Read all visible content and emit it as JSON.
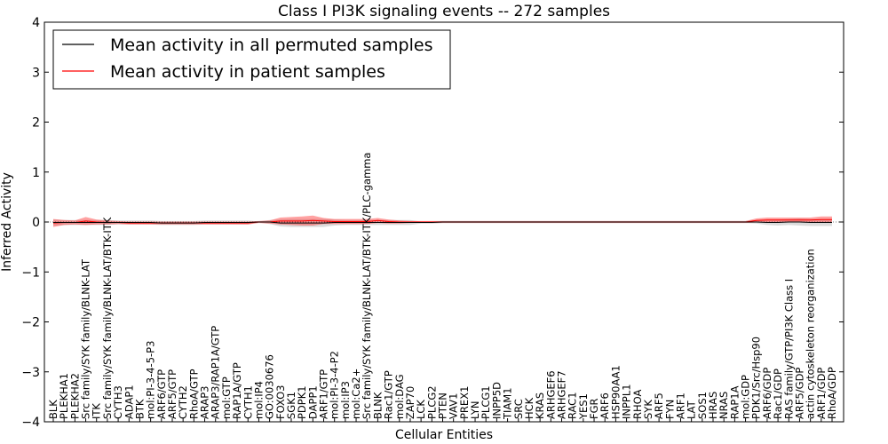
{
  "chart_data": {
    "type": "line",
    "title": "Class I PI3K signaling events -- 272 samples",
    "xlabel": "Cellular Entities",
    "ylabel": "Inferred Activity",
    "ylim": [
      -4,
      4
    ],
    "yticks": [
      -4,
      -3,
      -2,
      -1,
      0,
      1,
      2,
      3,
      4
    ],
    "ytick_labels": [
      "−4",
      "−3",
      "−2",
      "−1",
      "0",
      "1",
      "2",
      "3",
      "4"
    ],
    "legend_position": "top-left",
    "categories": [
      "BLK",
      "PLEKHA1",
      "PLEKHA2",
      "Src family/SYK family/BLNK-LAT",
      "ITK",
      "Src family/SYK family/BLNK-LAT/BTK-ITK",
      "CYTH3",
      "ADAP1",
      "BTK",
      "mol:PI-3-4-5-P3",
      "ARF6/GTP",
      "ARF5/GTP",
      "CYTH2",
      "RhoA/GTP",
      "ARAP3",
      "ARAP3/RAP1A/GTP",
      "mol:GTP",
      "RAP1A/GTP",
      "CYTH1",
      "mol:IP4",
      "GO:0030676",
      "FOXO3",
      "SGK1",
      "PDPK1",
      "DAPP1",
      "ARF1/GTP",
      "mol:PI-3-4-P2",
      "mol:IP3",
      "mol:Ca2+",
      "Src family/SYK family/BLNK-LAT/BTK-ITK/PLC-gamma",
      "BLNK",
      "Rac1/GTP",
      "mol:DAG",
      "ZAP70",
      "LCK",
      "PLCG2",
      "PTEN",
      "VAV1",
      "PREX1",
      "LYN",
      "PLCG1",
      "INPP5D",
      "TIAM1",
      "SRC",
      "HCK",
      "KRAS",
      "ARHGEF6",
      "ARHGEF7",
      "RAC1",
      "YES1",
      "FGR",
      "ARF6",
      "HSP90AA1",
      "INPPL1",
      "RHOA",
      "SYK",
      "ARF5",
      "FYN",
      "ARF1",
      "LAT",
      "SOS1",
      "HRAS",
      "NRAS",
      "RAP1A",
      "mol:GDP",
      "PDK1/Src/Hsp90",
      "ARF6/GDP",
      "Rac1/GDP",
      "RAS family/GTP/PI3K Class I",
      "ARF5/GDP",
      "actin cytoskeleton reorganization",
      "ARF1/GDP",
      "RhoA/GDP"
    ],
    "series": [
      {
        "name": "Mean activity in all permuted samples",
        "color": "#000000",
        "values": [
          -0.01,
          -0.01,
          -0.01,
          -0.01,
          -0.01,
          -0.01,
          -0.01,
          -0.01,
          -0.01,
          -0.01,
          -0.02,
          -0.02,
          -0.02,
          -0.02,
          -0.01,
          -0.01,
          -0.01,
          -0.01,
          -0.01,
          0.0,
          0.0,
          -0.02,
          -0.02,
          -0.02,
          -0.02,
          -0.02,
          -0.01,
          -0.01,
          -0.01,
          -0.01,
          -0.01,
          -0.01,
          -0.01,
          -0.01,
          -0.01,
          -0.01,
          0.0,
          0.0,
          0.0,
          0.0,
          0.0,
          0.0,
          0.0,
          0.0,
          0.0,
          0.0,
          0.0,
          0.0,
          0.0,
          0.0,
          0.0,
          0.0,
          0.0,
          0.0,
          0.0,
          0.0,
          0.0,
          0.0,
          0.0,
          0.0,
          0.0,
          0.0,
          0.0,
          0.0,
          0.0,
          0.0,
          -0.01,
          -0.01,
          0.0,
          0.0,
          -0.01,
          -0.01,
          -0.01
        ],
        "band": [
          0.06,
          0.05,
          0.05,
          0.05,
          0.05,
          0.05,
          0.04,
          0.04,
          0.04,
          0.04,
          0.04,
          0.04,
          0.04,
          0.04,
          0.04,
          0.04,
          0.04,
          0.04,
          0.04,
          0.01,
          0.04,
          0.07,
          0.08,
          0.08,
          0.08,
          0.08,
          0.06,
          0.05,
          0.05,
          0.05,
          0.05,
          0.05,
          0.05,
          0.05,
          0.02,
          0.02,
          0.02,
          0.02,
          0.02,
          0.02,
          0.02,
          0.02,
          0.02,
          0.02,
          0.02,
          0.02,
          0.02,
          0.02,
          0.02,
          0.02,
          0.02,
          0.02,
          0.02,
          0.02,
          0.02,
          0.02,
          0.02,
          0.02,
          0.02,
          0.02,
          0.02,
          0.02,
          0.02,
          0.02,
          0.02,
          0.03,
          0.05,
          0.06,
          0.06,
          0.07,
          0.07,
          0.07,
          0.07
        ]
      },
      {
        "name": "Mean activity in patient samples",
        "color": "#ff0000",
        "values": [
          -0.02,
          -0.01,
          -0.01,
          0.02,
          0.0,
          -0.01,
          -0.01,
          -0.02,
          -0.02,
          -0.02,
          -0.02,
          -0.02,
          -0.02,
          -0.02,
          -0.02,
          -0.02,
          -0.02,
          -0.02,
          -0.02,
          0.0,
          0.0,
          0.02,
          0.02,
          0.02,
          0.03,
          0.02,
          0.01,
          0.01,
          0.01,
          0.01,
          0.03,
          0.01,
          0.0,
          0.0,
          0.0,
          0.0,
          0.0,
          0.0,
          0.0,
          0.0,
          0.0,
          0.0,
          0.0,
          0.0,
          0.0,
          0.0,
          0.0,
          0.0,
          0.0,
          0.0,
          0.0,
          0.0,
          0.0,
          0.0,
          0.0,
          0.0,
          0.0,
          0.0,
          0.0,
          0.0,
          0.0,
          0.0,
          0.0,
          0.0,
          0.0,
          0.03,
          0.04,
          0.04,
          0.04,
          0.04,
          0.04,
          0.05,
          0.05
        ],
        "band": [
          0.08,
          0.05,
          0.04,
          0.08,
          0.05,
          0.04,
          0.03,
          0.03,
          0.03,
          0.03,
          0.03,
          0.03,
          0.03,
          0.03,
          0.03,
          0.03,
          0.03,
          0.03,
          0.03,
          0.02,
          0.03,
          0.07,
          0.08,
          0.09,
          0.1,
          0.06,
          0.05,
          0.05,
          0.05,
          0.05,
          0.05,
          0.04,
          0.03,
          0.02,
          0.02,
          0.02,
          0.02,
          0.02,
          0.02,
          0.02,
          0.02,
          0.02,
          0.02,
          0.02,
          0.02,
          0.02,
          0.02,
          0.02,
          0.02,
          0.02,
          0.02,
          0.02,
          0.02,
          0.02,
          0.02,
          0.02,
          0.02,
          0.02,
          0.02,
          0.02,
          0.02,
          0.02,
          0.02,
          0.02,
          0.02,
          0.04,
          0.05,
          0.05,
          0.05,
          0.05,
          0.05,
          0.06,
          0.06
        ]
      }
    ]
  }
}
